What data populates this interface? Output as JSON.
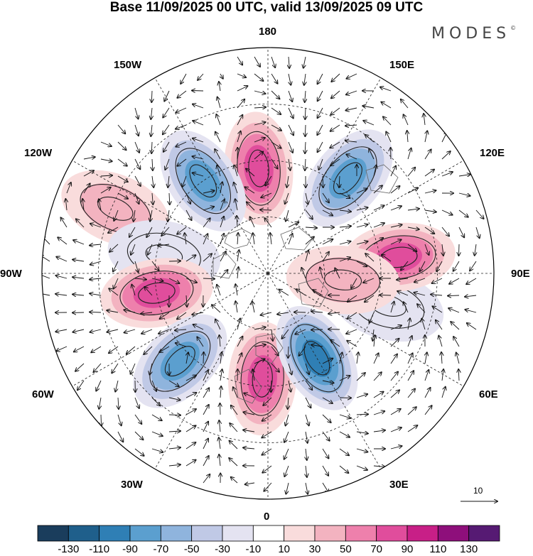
{
  "title": "Base 11/09/2025 00 UTC, valid 13/09/2025 09 UTC",
  "logo": "MODES",
  "logo_mark": "©",
  "longitude_labels": {
    "lon_180": "180",
    "lon_150E": "150E",
    "lon_120E": "120E",
    "lon_90E": "90E",
    "lon_60E": "60E",
    "lon_30E": "30E",
    "lon_0": "0",
    "lon_30W": "30W",
    "lon_60W": "60W",
    "lon_90W": "90W",
    "lon_120W": "120W",
    "lon_150W": "150W"
  },
  "reference_vector": "10",
  "colorbar": {
    "labels": [
      "-130",
      "-110",
      "-90",
      "-70",
      "-50",
      "-30",
      "-10",
      "10",
      "30",
      "50",
      "70",
      "90",
      "110",
      "130"
    ],
    "colors": [
      "#1a3d5c",
      "#1f5f8b",
      "#2f7fb5",
      "#5b9fcf",
      "#8fb4dd",
      "#c0c9e6",
      "#e4e3f1",
      "#ffffff",
      "#f9dcdc",
      "#f3b3c0",
      "#ee80ac",
      "#e04d9c",
      "#c81f87",
      "#8e0f7b",
      "#561a73"
    ]
  },
  "anomaly_centers": [
    {
      "lon": -175,
      "colat_deg": 28,
      "value": 95,
      "sign": "positive"
    },
    {
      "lon": -145,
      "colat_deg": 30,
      "value": -85,
      "sign": "negative"
    },
    {
      "lon": -113,
      "colat_deg": 44,
      "value": 40,
      "sign": "positive"
    },
    {
      "lon": -100,
      "colat_deg": 28,
      "value": -35,
      "sign": "negative"
    },
    {
      "lon": -80,
      "colat_deg": 30,
      "value": 90,
      "sign": "positive"
    },
    {
      "lon": -45,
      "colat_deg": 33,
      "value": -85,
      "sign": "negative"
    },
    {
      "lon": -3,
      "colat_deg": 28,
      "value": 95,
      "sign": "positive"
    },
    {
      "lon": 30,
      "colat_deg": 26,
      "value": -105,
      "sign": "negative"
    },
    {
      "lon": 75,
      "colat_deg": 33,
      "value": -35,
      "sign": "negative"
    },
    {
      "lon": 97,
      "colat_deg": 35,
      "value": 90,
      "sign": "positive"
    },
    {
      "lon": 85,
      "colat_deg": 20,
      "value": 45,
      "sign": "positive"
    },
    {
      "lon": 140,
      "colat_deg": 33,
      "value": -80,
      "sign": "negative"
    }
  ]
}
